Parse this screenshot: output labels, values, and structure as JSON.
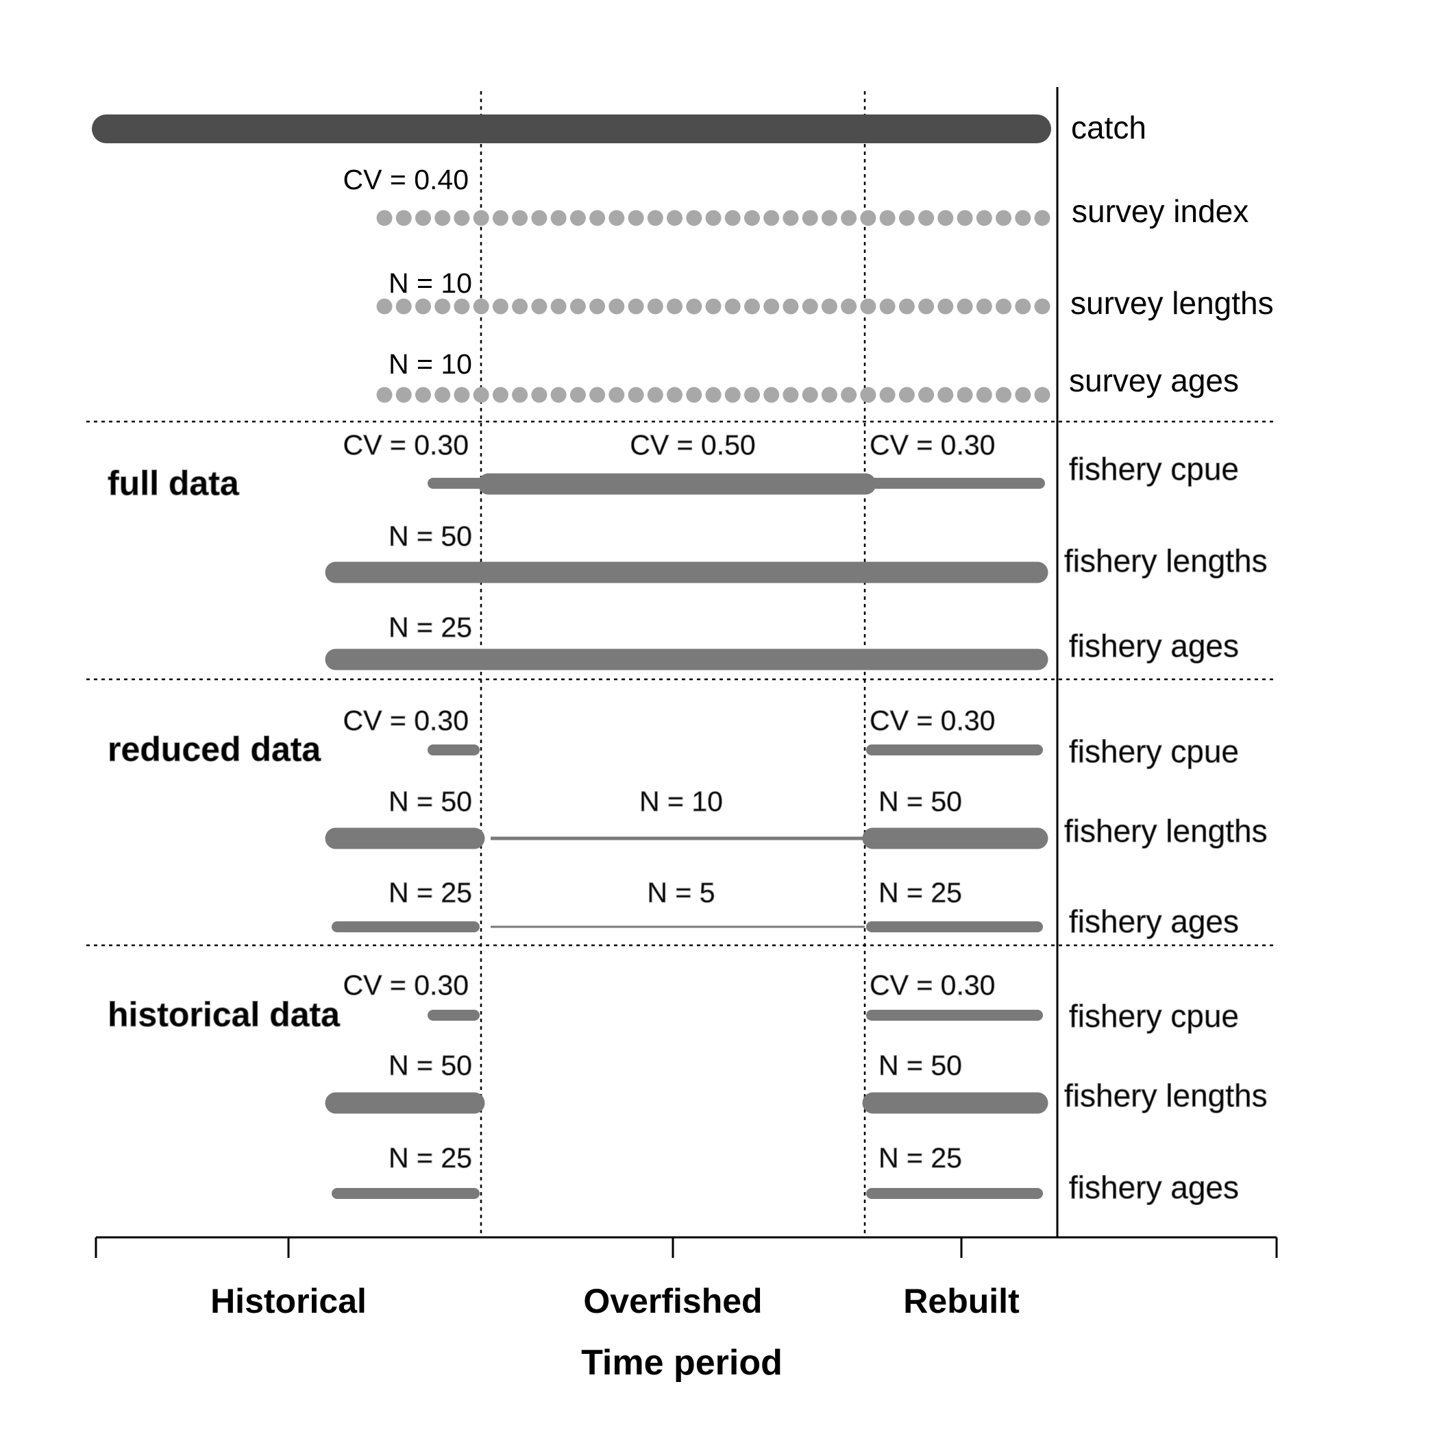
{
  "diagram": {
    "periods": [
      "Historical",
      "Overfished",
      "Rebuilt"
    ],
    "xlabel": "Time period",
    "colors": {
      "catch": "#4d4d4d",
      "data": "#7a7a7a",
      "survey": "#a8a8a8",
      "axis": "#000000"
    },
    "common_rows": [
      {
        "id": "catch",
        "label": "catch",
        "style": "bar",
        "periods": [
          "Historical",
          "Overfished",
          "Rebuilt"
        ],
        "annotation": ""
      },
      {
        "id": "survey-index",
        "label": "survey index",
        "style": "dots",
        "periods": [
          "Historical",
          "Overfished",
          "Rebuilt"
        ],
        "annotation": "CV = 0.40"
      },
      {
        "id": "survey-lengths",
        "label": "survey lengths",
        "style": "dots",
        "periods": [
          "Historical",
          "Overfished",
          "Rebuilt"
        ],
        "annotation": "N = 10"
      },
      {
        "id": "survey-ages",
        "label": "survey ages",
        "style": "dots",
        "periods": [
          "Historical",
          "Overfished",
          "Rebuilt"
        ],
        "annotation": "N = 10"
      }
    ],
    "scenarios": [
      {
        "name": "full data",
        "rows": [
          {
            "label": "fishery cpue",
            "annotations": [
              "CV = 0.30",
              "CV = 0.50",
              "CV = 0.30"
            ]
          },
          {
            "label": "fishery lengths",
            "annotations": [
              "N = 50"
            ]
          },
          {
            "label": "fishery ages",
            "annotations": [
              "N = 25"
            ]
          }
        ]
      },
      {
        "name": "reduced data",
        "rows": [
          {
            "label": "fishery cpue",
            "annotations": [
              "CV = 0.30",
              "CV = 0.30"
            ]
          },
          {
            "label": "fishery lengths",
            "annotations": [
              "N = 50",
              "N = 10",
              "N = 50"
            ]
          },
          {
            "label": "fishery ages",
            "annotations": [
              "N = 25",
              "N = 5",
              "N = 25"
            ]
          }
        ]
      },
      {
        "name": "historical data",
        "rows": [
          {
            "label": "fishery cpue",
            "annotations": [
              "CV = 0.30",
              "CV = 0.30"
            ]
          },
          {
            "label": "fishery lengths",
            "annotations": [
              "N = 50",
              "N = 50"
            ]
          },
          {
            "label": "fishery ages",
            "annotations": [
              "N = 25",
              "N = 25"
            ]
          }
        ]
      }
    ]
  }
}
